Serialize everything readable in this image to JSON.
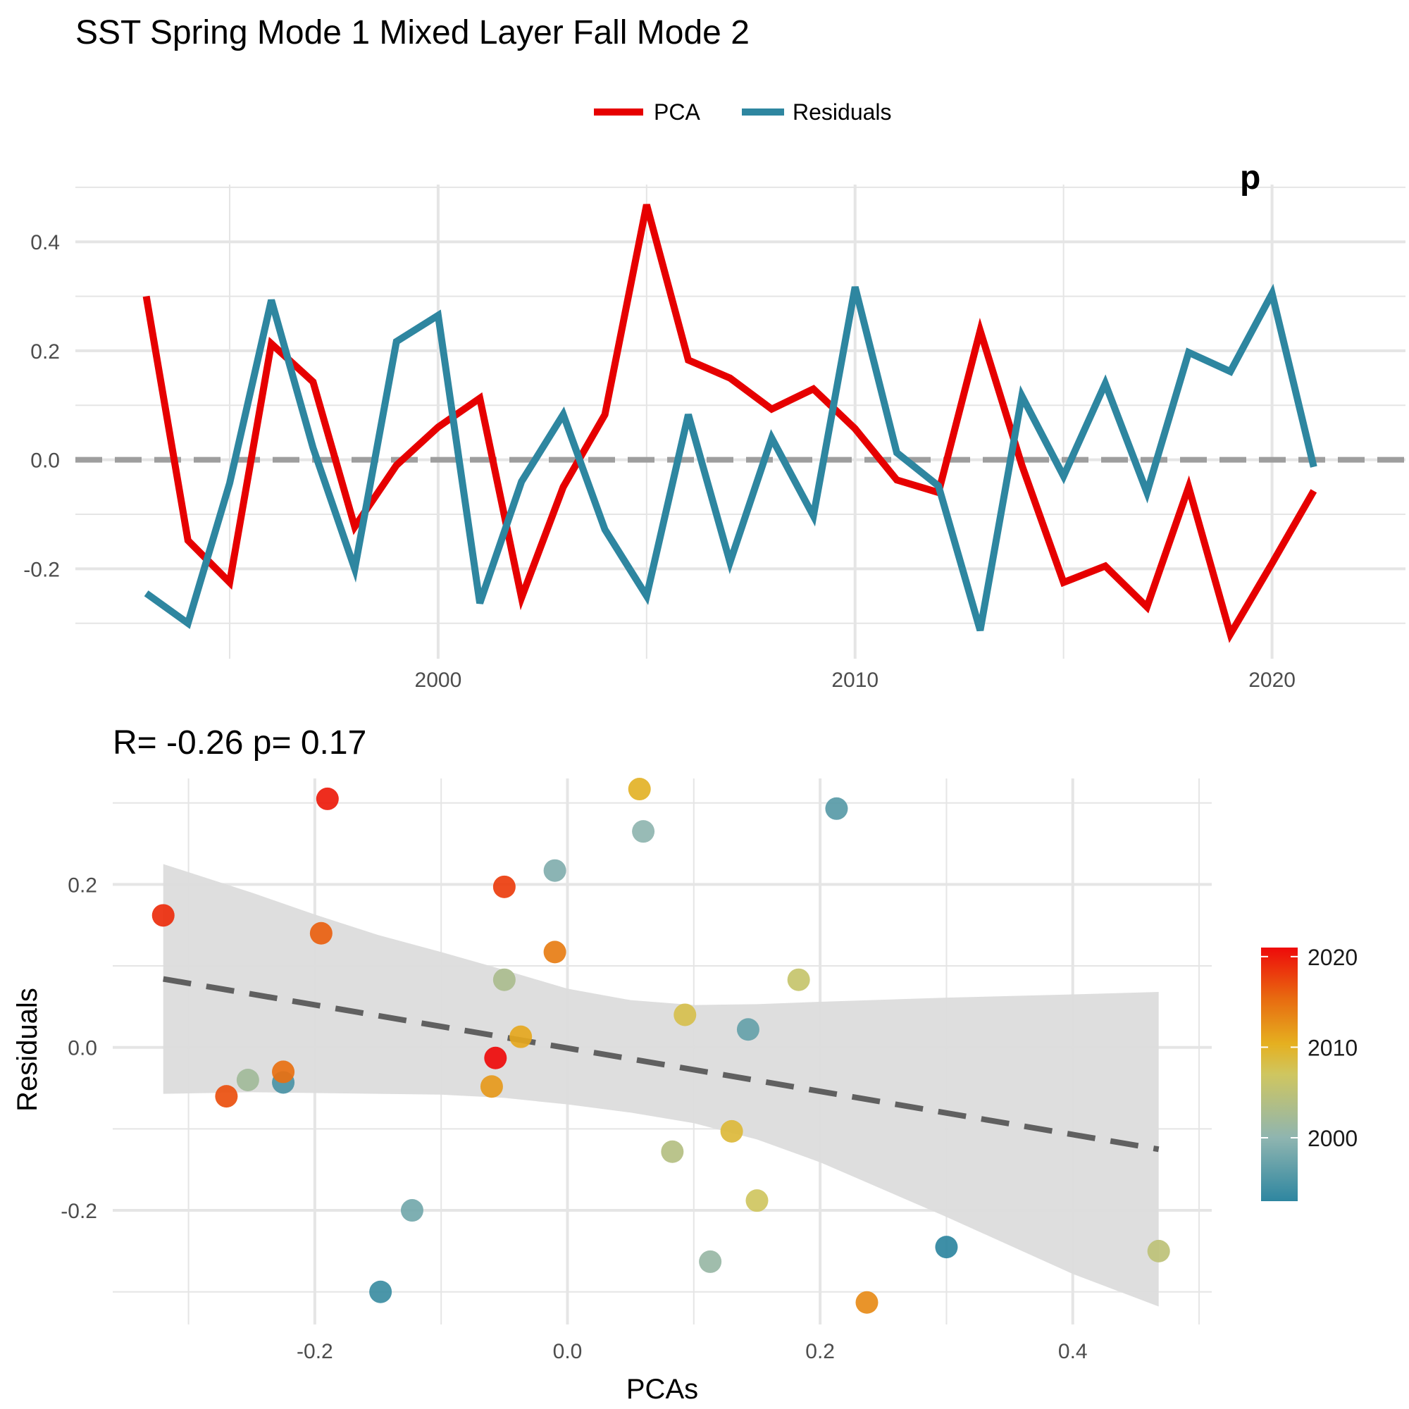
{
  "title": "SST Spring Mode 1 Mixed Layer Fall Mode 2",
  "colors": {
    "pca": "#e60000",
    "residuals": "#2e86a0",
    "zero_line": "#9e9e9e",
    "grid": "#e5e5e5",
    "ribbon": "#dcdcdc",
    "fit_line": "#606060"
  },
  "chart_data": [
    {
      "type": "line",
      "title": "",
      "partial_annotation": "p",
      "xlabel": "",
      "ylabel": "",
      "legend": {
        "position": "top",
        "entries": [
          "PCA",
          "Residuals"
        ]
      },
      "x": [
        1993,
        1994,
        1995,
        1996,
        1997,
        1998,
        1999,
        2000,
        2001,
        2002,
        2003,
        2004,
        2005,
        2006,
        2007,
        2008,
        2009,
        2010,
        2011,
        2012,
        2013,
        2014,
        2015,
        2016,
        2017,
        2018,
        2019,
        2020,
        2021
      ],
      "series": [
        {
          "name": "PCA",
          "color": "#e60000",
          "values": [
            0.3,
            -0.148,
            -0.225,
            0.213,
            0.143,
            -0.123,
            -0.01,
            0.06,
            0.113,
            -0.253,
            -0.05,
            0.083,
            0.468,
            0.183,
            0.15,
            0.093,
            0.13,
            0.057,
            -0.037,
            -0.06,
            0.237,
            -0.01,
            -0.225,
            -0.195,
            -0.27,
            -0.05,
            -0.32,
            -0.19,
            -0.057
          ]
        },
        {
          "name": "Residuals",
          "color": "#2e86a0",
          "values": [
            -0.245,
            -0.3,
            -0.043,
            0.293,
            0.022,
            -0.2,
            0.217,
            0.265,
            -0.263,
            -0.04,
            0.083,
            -0.128,
            -0.25,
            0.083,
            -0.188,
            0.04,
            -0.103,
            0.317,
            0.013,
            -0.048,
            -0.313,
            0.117,
            -0.03,
            0.14,
            -0.06,
            0.197,
            0.162,
            0.305,
            -0.013
          ]
        }
      ],
      "xlim": [
        1991.3,
        2023.2
      ],
      "ylim": [
        -0.365,
        0.505
      ],
      "x_ticks": [
        2000,
        2010,
        2020
      ],
      "y_ticks": [
        0.4,
        0.2,
        0.0,
        -0.2
      ],
      "y_tick_labels": [
        "0.4",
        "0.2",
        "0.0",
        "-0.2"
      ],
      "x_tick_labels": [
        "2000",
        "2010",
        "2020"
      ],
      "reference_line": 0
    },
    {
      "type": "scatter",
      "title": "R= -0.26  p= 0.17",
      "xlabel": "PCAs",
      "ylabel": "Residuals",
      "xlim": [
        -0.36,
        0.51
      ],
      "ylim": [
        -0.34,
        0.33
      ],
      "x_ticks": [
        -0.2,
        0.0,
        0.2,
        0.4
      ],
      "x_tick_labels": [
        "-0.2",
        "0.0",
        "0.2",
        "0.4"
      ],
      "y_ticks": [
        0.2,
        0.0,
        -0.2
      ],
      "y_tick_labels": [
        "0.2",
        "0.0",
        "-0.2"
      ],
      "fit": {
        "x0": -0.32,
        "y0": 0.084,
        "x1": 0.468,
        "y1": -0.125
      },
      "ribbon": {
        "x": [
          -0.32,
          -0.25,
          -0.2,
          -0.15,
          -0.1,
          -0.05,
          0.0,
          0.05,
          0.1,
          0.15,
          0.2,
          0.3,
          0.4,
          0.468
        ],
        "upper": [
          0.225,
          0.19,
          0.163,
          0.138,
          0.117,
          0.095,
          0.072,
          0.058,
          0.052,
          0.053,
          0.056,
          0.061,
          0.065,
          0.068
        ],
        "lower": [
          -0.057,
          -0.055,
          -0.056,
          -0.057,
          -0.058,
          -0.062,
          -0.07,
          -0.08,
          -0.093,
          -0.113,
          -0.141,
          -0.208,
          -0.278,
          -0.318
        ]
      },
      "colorbar": {
        "label_ticks": [
          2020,
          2010,
          2000
        ],
        "tick_labels": [
          "2020",
          "2010",
          "2000"
        ],
        "range": [
          1993,
          2021
        ]
      },
      "points": [
        {
          "x": 0.3,
          "y": -0.245,
          "year": 1993
        },
        {
          "x": -0.148,
          "y": -0.3,
          "year": 1994
        },
        {
          "x": -0.225,
          "y": -0.043,
          "year": 1995
        },
        {
          "x": 0.213,
          "y": 0.293,
          "year": 1996
        },
        {
          "x": 0.143,
          "y": 0.022,
          "year": 1997
        },
        {
          "x": -0.123,
          "y": -0.2,
          "year": 1998
        },
        {
          "x": -0.01,
          "y": 0.217,
          "year": 1999
        },
        {
          "x": 0.06,
          "y": 0.265,
          "year": 2000
        },
        {
          "x": 0.113,
          "y": -0.263,
          "year": 2001
        },
        {
          "x": -0.253,
          "y": -0.04,
          "year": 2002
        },
        {
          "x": -0.05,
          "y": 0.083,
          "year": 2003
        },
        {
          "x": 0.083,
          "y": -0.128,
          "year": 2004
        },
        {
          "x": 0.468,
          "y": -0.25,
          "year": 2005
        },
        {
          "x": 0.183,
          "y": 0.083,
          "year": 2006
        },
        {
          "x": 0.15,
          "y": -0.188,
          "year": 2007
        },
        {
          "x": 0.093,
          "y": 0.04,
          "year": 2008
        },
        {
          "x": 0.13,
          "y": -0.103,
          "year": 2009
        },
        {
          "x": 0.057,
          "y": 0.317,
          "year": 2010
        },
        {
          "x": -0.037,
          "y": 0.013,
          "year": 2011
        },
        {
          "x": -0.06,
          "y": -0.048,
          "year": 2012
        },
        {
          "x": 0.237,
          "y": -0.313,
          "year": 2013
        },
        {
          "x": -0.01,
          "y": 0.117,
          "year": 2014
        },
        {
          "x": -0.225,
          "y": -0.03,
          "year": 2015
        },
        {
          "x": -0.195,
          "y": 0.14,
          "year": 2016
        },
        {
          "x": -0.27,
          "y": -0.06,
          "year": 2017
        },
        {
          "x": -0.05,
          "y": 0.197,
          "year": 2018
        },
        {
          "x": -0.32,
          "y": 0.162,
          "year": 2019
        },
        {
          "x": -0.19,
          "y": 0.305,
          "year": 2020
        },
        {
          "x": -0.057,
          "y": -0.013,
          "year": 2021
        }
      ]
    }
  ]
}
